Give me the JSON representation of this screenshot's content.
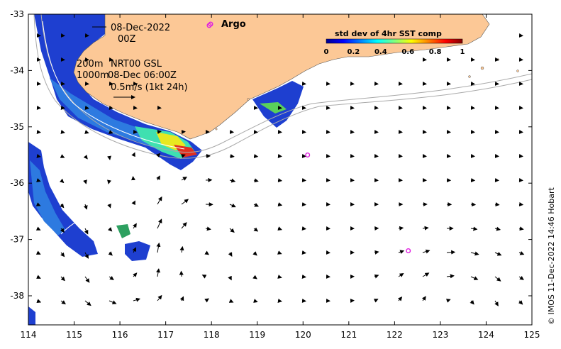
{
  "map": {
    "lon_range": [
      114,
      125
    ],
    "lat_range": [
      -38.5,
      -33
    ],
    "x_ticks": [
      "114",
      "115",
      "116",
      "117",
      "118",
      "119",
      "120",
      "121",
      "122",
      "123",
      "124",
      "125"
    ],
    "y_ticks": [
      "-33",
      "-34",
      "-35",
      "-36",
      "-37",
      "-38"
    ],
    "land_color": "#fcc896",
    "isobath_color": "#aaaaaa"
  },
  "annotations": {
    "date": "08-Dec-2022",
    "hour": "00Z",
    "iso200": "200m",
    "iso1000": "1000m",
    "nrt_label": "NRT00 GSL",
    "nrt_time": "08-Dec 06:00Z",
    "scale_vector": "0.5m/s (1kt 24h)"
  },
  "legend": {
    "argo_label": "Argo",
    "argo_color": "#e020e0"
  },
  "colorbar": {
    "title": "std dev of 4hr SST comp",
    "ticks": [
      "0",
      "0.2",
      "0.4",
      "0.6",
      "0.8",
      "1"
    ],
    "min": 0,
    "max": 1
  },
  "argo_floats": [
    {
      "lon": 117.95,
      "lat": -33.2
    },
    {
      "lon": 120.1,
      "lat": -35.5
    },
    {
      "lon": 122.3,
      "lat": -37.2
    }
  ],
  "credit": "© IMOS 11-Dec-2022 14:46 Hobart"
}
